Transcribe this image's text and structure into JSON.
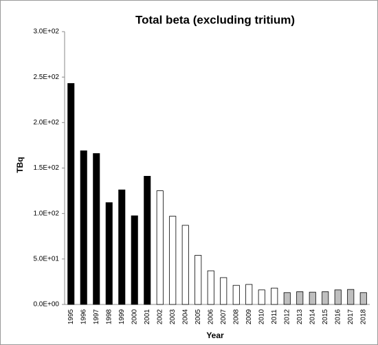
{
  "chart_data": {
    "type": "bar",
    "title": "Total beta (excluding tritium)",
    "x_label": "Year",
    "y_label": "TBq",
    "categories": [
      "1995",
      "1996",
      "1997",
      "1998",
      "1999",
      "2000",
      "2001",
      "2002",
      "2003",
      "2004",
      "2005",
      "2006",
      "2007",
      "2008",
      "2009",
      "2010",
      "2011",
      "2012",
      "2013",
      "2014",
      "2015",
      "2016",
      "2017",
      "2018"
    ],
    "values": [
      243,
      169,
      166,
      112,
      126,
      97.5,
      141,
      125,
      97,
      87,
      54,
      37,
      29.5,
      21,
      22,
      16,
      18,
      13,
      14,
      13.5,
      14,
      16,
      16.5,
      13
    ],
    "colors": [
      "#000000",
      "#000000",
      "#000000",
      "#000000",
      "#000000",
      "#000000",
      "#000000",
      "#ffffff",
      "#ffffff",
      "#ffffff",
      "#ffffff",
      "#ffffff",
      "#ffffff",
      "#ffffff",
      "#ffffff",
      "#ffffff",
      "#ffffff",
      "#bfbfbf",
      "#bfbfbf",
      "#bfbfbf",
      "#bfbfbf",
      "#bfbfbf",
      "#bfbfbf",
      "#bfbfbf"
    ],
    "ylim": [
      0,
      300
    ],
    "yticks": [
      {
        "value": 0,
        "label": "0.0E+00"
      },
      {
        "value": 50,
        "label": "5.0E+01"
      },
      {
        "value": 100,
        "label": "1.0E+02"
      },
      {
        "value": 150,
        "label": "1.5E+02"
      },
      {
        "value": 200,
        "label": "2.0E+02"
      },
      {
        "value": 250,
        "label": "2.5E+02"
      },
      {
        "value": 300,
        "label": "3.0E+02"
      }
    ],
    "grid": false
  }
}
